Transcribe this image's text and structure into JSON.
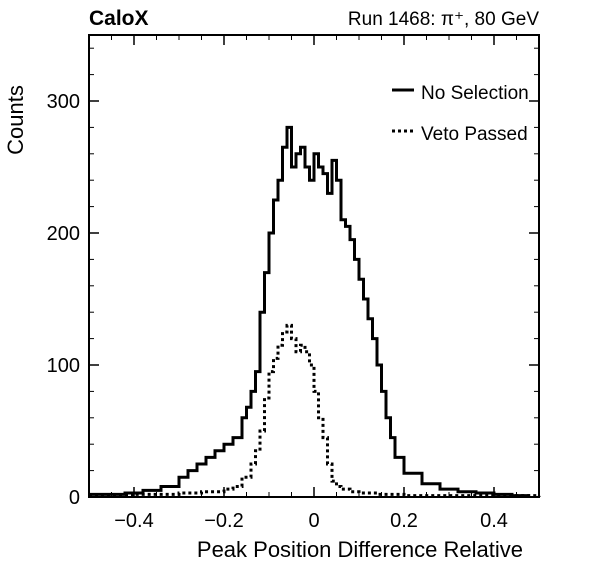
{
  "chart_data": {
    "type": "line",
    "experiment_label": "CaloX",
    "run_label": "Run 1468:   π⁺, 80 GeV",
    "xlabel": "Peak Position Difference Relative",
    "ylabel": "Counts",
    "xlim": [
      -0.5,
      0.5
    ],
    "ylim": [
      0,
      350
    ],
    "x_ticks": [
      -0.4,
      -0.2,
      0,
      0.2,
      0.4
    ],
    "x_tick_labels": [
      "−0.4",
      "−0.2",
      "0",
      "0.2",
      "0.4"
    ],
    "y_ticks": [
      0,
      100,
      200,
      300
    ],
    "y_tick_labels": [
      "0",
      "100",
      "200",
      "300"
    ],
    "legend_position": "top-right",
    "grid": false,
    "series": [
      {
        "name": "No Selection",
        "style": "solid",
        "color": "#000000",
        "x": [
          -0.5,
          -0.46,
          -0.42,
          -0.38,
          -0.34,
          -0.3,
          -0.28,
          -0.26,
          -0.24,
          -0.22,
          -0.2,
          -0.18,
          -0.16,
          -0.15,
          -0.14,
          -0.13,
          -0.12,
          -0.11,
          -0.1,
          -0.09,
          -0.08,
          -0.07,
          -0.06,
          -0.05,
          -0.04,
          -0.03,
          -0.02,
          -0.01,
          0.0,
          0.01,
          0.02,
          0.03,
          0.04,
          0.05,
          0.06,
          0.07,
          0.08,
          0.09,
          0.1,
          0.11,
          0.12,
          0.13,
          0.14,
          0.15,
          0.16,
          0.17,
          0.18,
          0.2,
          0.24,
          0.28,
          0.32,
          0.36,
          0.4,
          0.44,
          0.48
        ],
        "y": [
          2,
          2,
          3,
          5,
          8,
          15,
          20,
          25,
          30,
          35,
          40,
          45,
          60,
          68,
          80,
          95,
          140,
          170,
          200,
          225,
          240,
          265,
          280,
          250,
          260,
          265,
          250,
          240,
          260,
          250,
          245,
          230,
          255,
          240,
          210,
          205,
          195,
          180,
          165,
          150,
          135,
          120,
          100,
          80,
          60,
          45,
          30,
          18,
          10,
          6,
          4,
          3,
          2,
          1,
          1
        ]
      },
      {
        "name": "Veto Passed",
        "style": "dotted",
        "color": "#000000",
        "x": [
          -0.5,
          -0.4,
          -0.3,
          -0.25,
          -0.2,
          -0.18,
          -0.16,
          -0.14,
          -0.13,
          -0.12,
          -0.11,
          -0.1,
          -0.09,
          -0.08,
          -0.07,
          -0.06,
          -0.05,
          -0.04,
          -0.03,
          -0.02,
          -0.01,
          0.0,
          0.01,
          0.02,
          0.03,
          0.04,
          0.05,
          0.06,
          0.08,
          0.1,
          0.14,
          0.2,
          0.3,
          0.4,
          0.5
        ],
        "y": [
          1,
          2,
          3,
          4,
          6,
          8,
          15,
          25,
          35,
          50,
          75,
          95,
          105,
          115,
          125,
          130,
          120,
          110,
          115,
          110,
          100,
          80,
          60,
          45,
          25,
          12,
          8,
          6,
          4,
          3,
          2,
          1,
          1,
          1,
          0
        ]
      }
    ]
  }
}
